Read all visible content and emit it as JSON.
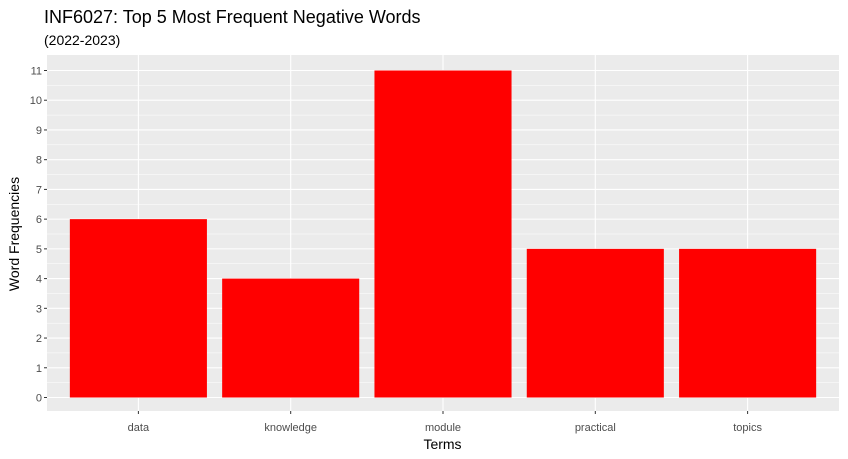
{
  "chart_data": {
    "type": "bar",
    "title": "INF6027: Top 5 Most Frequent Negative Words",
    "subtitle": "(2022-2023)",
    "xlabel": "Terms",
    "ylabel": "Word Frequencies",
    "categories": [
      "data",
      "knowledge",
      "module",
      "practical",
      "topics"
    ],
    "values": [
      6,
      4,
      11,
      5,
      5
    ],
    "ylim": [
      0,
      11.5
    ],
    "yticks": [
      0,
      1,
      2,
      3,
      4,
      5,
      6,
      7,
      8,
      9,
      10,
      11
    ],
    "grid": true,
    "legend": "none",
    "colors": {
      "bar": "#ff0000",
      "panel": "#ebebeb",
      "grid": "#ffffff"
    }
  }
}
